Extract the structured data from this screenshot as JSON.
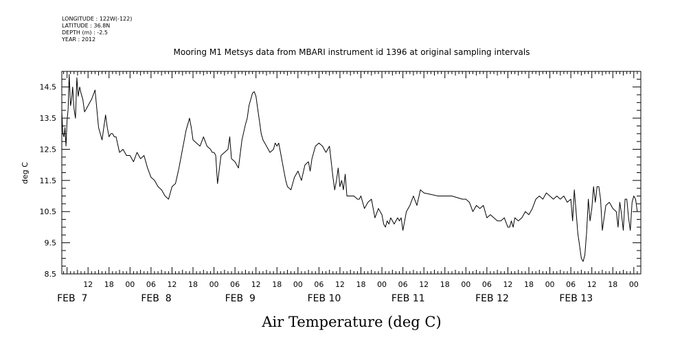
{
  "header": {
    "longitude": "LONGITUDE : 122W(-122)",
    "latitude": "LATITUDE : 36.8N",
    "depth": "DEPTH (m) : -2.5",
    "year": "YEAR : 2012"
  },
  "chart_data": {
    "type": "line",
    "title": "Mooring M1 Metsys data from MBARI instrument id 1396 at original sampling intervals",
    "xlabel": "Air Temperature (deg C)",
    "ylabel": "deg C",
    "ylim": [
      8.5,
      15.0
    ],
    "yticks": [
      "8.5",
      "9.5",
      "10.5",
      "11.5",
      "12.5",
      "13.5",
      "14.5"
    ],
    "x_unit": "hours since FEB 7 00:00, 2012",
    "xlim": [
      4.5,
      170
    ],
    "hour_ticks": [
      {
        "x": 12,
        "label": "12"
      },
      {
        "x": 18,
        "label": "18"
      },
      {
        "x": 24,
        "label": "00"
      },
      {
        "x": 30,
        "label": "06"
      },
      {
        "x": 36,
        "label": "12"
      },
      {
        "x": 42,
        "label": "18"
      },
      {
        "x": 48,
        "label": "00"
      },
      {
        "x": 54,
        "label": "06"
      },
      {
        "x": 60,
        "label": "12"
      },
      {
        "x": 66,
        "label": "18"
      },
      {
        "x": 72,
        "label": "00"
      },
      {
        "x": 78,
        "label": "06"
      },
      {
        "x": 84,
        "label": "12"
      },
      {
        "x": 90,
        "label": "18"
      },
      {
        "x": 96,
        "label": "00"
      },
      {
        "x": 102,
        "label": "06"
      },
      {
        "x": 108,
        "label": "12"
      },
      {
        "x": 114,
        "label": "18"
      },
      {
        "x": 120,
        "label": "00"
      },
      {
        "x": 126,
        "label": "06"
      },
      {
        "x": 132,
        "label": "12"
      },
      {
        "x": 138,
        "label": "18"
      },
      {
        "x": 144,
        "label": "00"
      },
      {
        "x": 150,
        "label": "06"
      },
      {
        "x": 156,
        "label": "12"
      },
      {
        "x": 162,
        "label": "18"
      },
      {
        "x": 168,
        "label": "00"
      }
    ],
    "day_labels": [
      {
        "x": 7.5,
        "label": "FEB  7"
      },
      {
        "x": 31.5,
        "label": "FEB  8"
      },
      {
        "x": 55.5,
        "label": "FEB  9"
      },
      {
        "x": 79.5,
        "label": "FEB 10"
      },
      {
        "x": 103.5,
        "label": "FEB 11"
      },
      {
        "x": 127.5,
        "label": "FEB 12"
      },
      {
        "x": 151.5,
        "label": "FEB 13"
      }
    ],
    "series": [
      {
        "x": [
          4.5,
          4.8,
          5.1,
          5.4,
          5.7,
          6.0,
          6.3,
          6.6,
          7.0,
          7.3,
          7.6,
          8.0,
          8.4,
          8.8,
          9.2,
          9.6,
          10.0,
          10.5,
          11.0,
          11.5,
          12.0,
          12.5,
          13.0,
          14.0,
          15.0,
          16.0,
          17.0,
          17.5,
          18.0,
          18.5,
          19.0,
          19.5,
          20.0,
          21.0,
          22.0,
          23.0,
          24.0,
          25.0,
          26.0,
          27.0,
          28.0,
          29.0,
          30.0,
          31.0,
          32.0,
          33.0,
          34.0,
          35.0,
          36.0,
          37.0,
          38.0,
          39.0,
          39.5,
          40.0,
          40.5,
          41.0,
          41.5,
          42.0,
          43.0,
          44.0,
          45.0,
          46.0,
          47.0,
          47.5,
          48.0,
          48.5,
          49.0,
          50.0,
          51.0,
          52.0,
          52.5,
          53.0,
          54.0,
          55.0,
          56.0,
          57.0,
          57.5,
          58.0,
          58.5,
          59.0,
          59.5,
          60.0,
          60.5,
          61.0,
          61.5,
          62.0,
          63.0,
          64.0,
          65.0,
          65.5,
          66.0,
          66.5,
          67.0,
          68.0,
          68.5,
          69.0,
          70.0,
          71.0,
          72.0,
          73.0,
          74.0,
          75.0,
          75.5,
          76.0,
          77.0,
          78.0,
          79.0,
          80.0,
          81.0,
          82.0,
          82.5,
          83.0,
          83.5,
          84.0,
          84.5,
          85.0,
          85.5,
          86.0,
          87.0,
          88.0,
          89.0,
          89.5,
          90.0,
          91.0,
          92.0,
          93.0,
          94.0,
          95.0,
          96.0,
          96.5,
          97.0,
          97.5,
          98.0,
          98.5,
          99.0,
          99.5,
          100.0,
          100.5,
          101.0,
          101.5,
          102.0,
          103.0,
          104.0,
          105.0,
          106.0,
          107.0,
          108.0,
          112.0,
          116.0,
          119.0,
          120.0,
          121.0,
          122.0,
          123.0,
          124.0,
          125.0,
          126.0,
          127.0,
          128.0,
          129.0,
          130.0,
          131.0,
          132.0,
          132.5,
          133.0,
          133.5,
          134.0,
          135.0,
          136.0,
          137.0,
          138.0,
          139.0,
          140.0,
          141.0,
          142.0,
          143.0,
          144.0,
          145.0,
          146.0,
          147.0,
          148.0,
          149.0,
          150.0,
          150.5,
          151.0,
          151.5,
          152.0,
          152.5,
          153.0,
          153.5,
          154.0,
          154.5,
          155.0,
          155.5,
          156.0,
          156.5,
          157.0,
          157.5,
          158.0,
          158.5,
          159.0,
          160.0,
          161.0,
          162.0,
          163.0,
          163.5,
          164.0,
          164.5,
          165.0,
          165.5,
          166.0,
          166.5,
          167.0,
          167.5,
          168.0,
          168.5,
          169.0
        ],
        "y": [
          13.7,
          13.0,
          12.9,
          13.2,
          12.6,
          13.4,
          13.8,
          14.9,
          13.9,
          14.1,
          14.5,
          13.8,
          13.5,
          14.8,
          14.2,
          14.5,
          14.3,
          14.1,
          13.7,
          13.8,
          13.9,
          14.0,
          14.1,
          14.4,
          13.2,
          12.8,
          13.6,
          13.2,
          12.9,
          13.0,
          13.0,
          12.9,
          12.9,
          12.4,
          12.5,
          12.3,
          12.3,
          12.1,
          12.4,
          12.2,
          12.3,
          11.9,
          11.6,
          11.5,
          11.3,
          11.2,
          11.0,
          10.9,
          11.3,
          11.4,
          11.9,
          12.5,
          12.8,
          13.1,
          13.3,
          13.5,
          13.2,
          12.8,
          12.7,
          12.6,
          12.9,
          12.6,
          12.5,
          12.4,
          12.4,
          12.3,
          11.4,
          12.3,
          12.4,
          12.5,
          12.9,
          12.2,
          12.1,
          11.9,
          12.8,
          13.3,
          13.5,
          13.9,
          14.1,
          14.3,
          14.35,
          14.2,
          13.8,
          13.4,
          13.0,
          12.8,
          12.6,
          12.4,
          12.5,
          12.7,
          12.6,
          12.7,
          12.4,
          11.8,
          11.5,
          11.3,
          11.2,
          11.6,
          11.8,
          11.5,
          12.0,
          12.1,
          11.8,
          12.2,
          12.6,
          12.7,
          12.6,
          12.4,
          12.6,
          11.6,
          11.2,
          11.5,
          11.9,
          11.3,
          11.5,
          11.2,
          11.7,
          11.0,
          11.0,
          11.0,
          10.9,
          10.9,
          11.0,
          10.6,
          10.8,
          10.9,
          10.3,
          10.6,
          10.4,
          10.1,
          10.0,
          10.2,
          10.1,
          10.3,
          10.2,
          10.1,
          10.2,
          10.3,
          10.2,
          10.3,
          9.9,
          10.5,
          10.7,
          11.0,
          10.7,
          11.2,
          11.1,
          11.0,
          11.0,
          10.9,
          10.9,
          10.8,
          10.5,
          10.7,
          10.6,
          10.7,
          10.3,
          10.4,
          10.3,
          10.2,
          10.2,
          10.3,
          10.0,
          10.0,
          10.2,
          10.0,
          10.3,
          10.2,
          10.3,
          10.5,
          10.4,
          10.6,
          10.9,
          11.0,
          10.9,
          11.1,
          11.0,
          10.9,
          11.0,
          10.9,
          11.0,
          10.8,
          10.9,
          10.2,
          11.2,
          10.5,
          9.8,
          9.4,
          9.0,
          8.9,
          9.1,
          9.8,
          10.9,
          10.2,
          10.6,
          11.3,
          10.8,
          11.3,
          11.3,
          10.9,
          9.9,
          10.7,
          10.8,
          10.6,
          10.5,
          10.0,
          10.8,
          10.4,
          9.9,
          10.9,
          10.9,
          10.3,
          9.9,
          10.8,
          11.0,
          10.9,
          10.5
        ]
      }
    ]
  }
}
